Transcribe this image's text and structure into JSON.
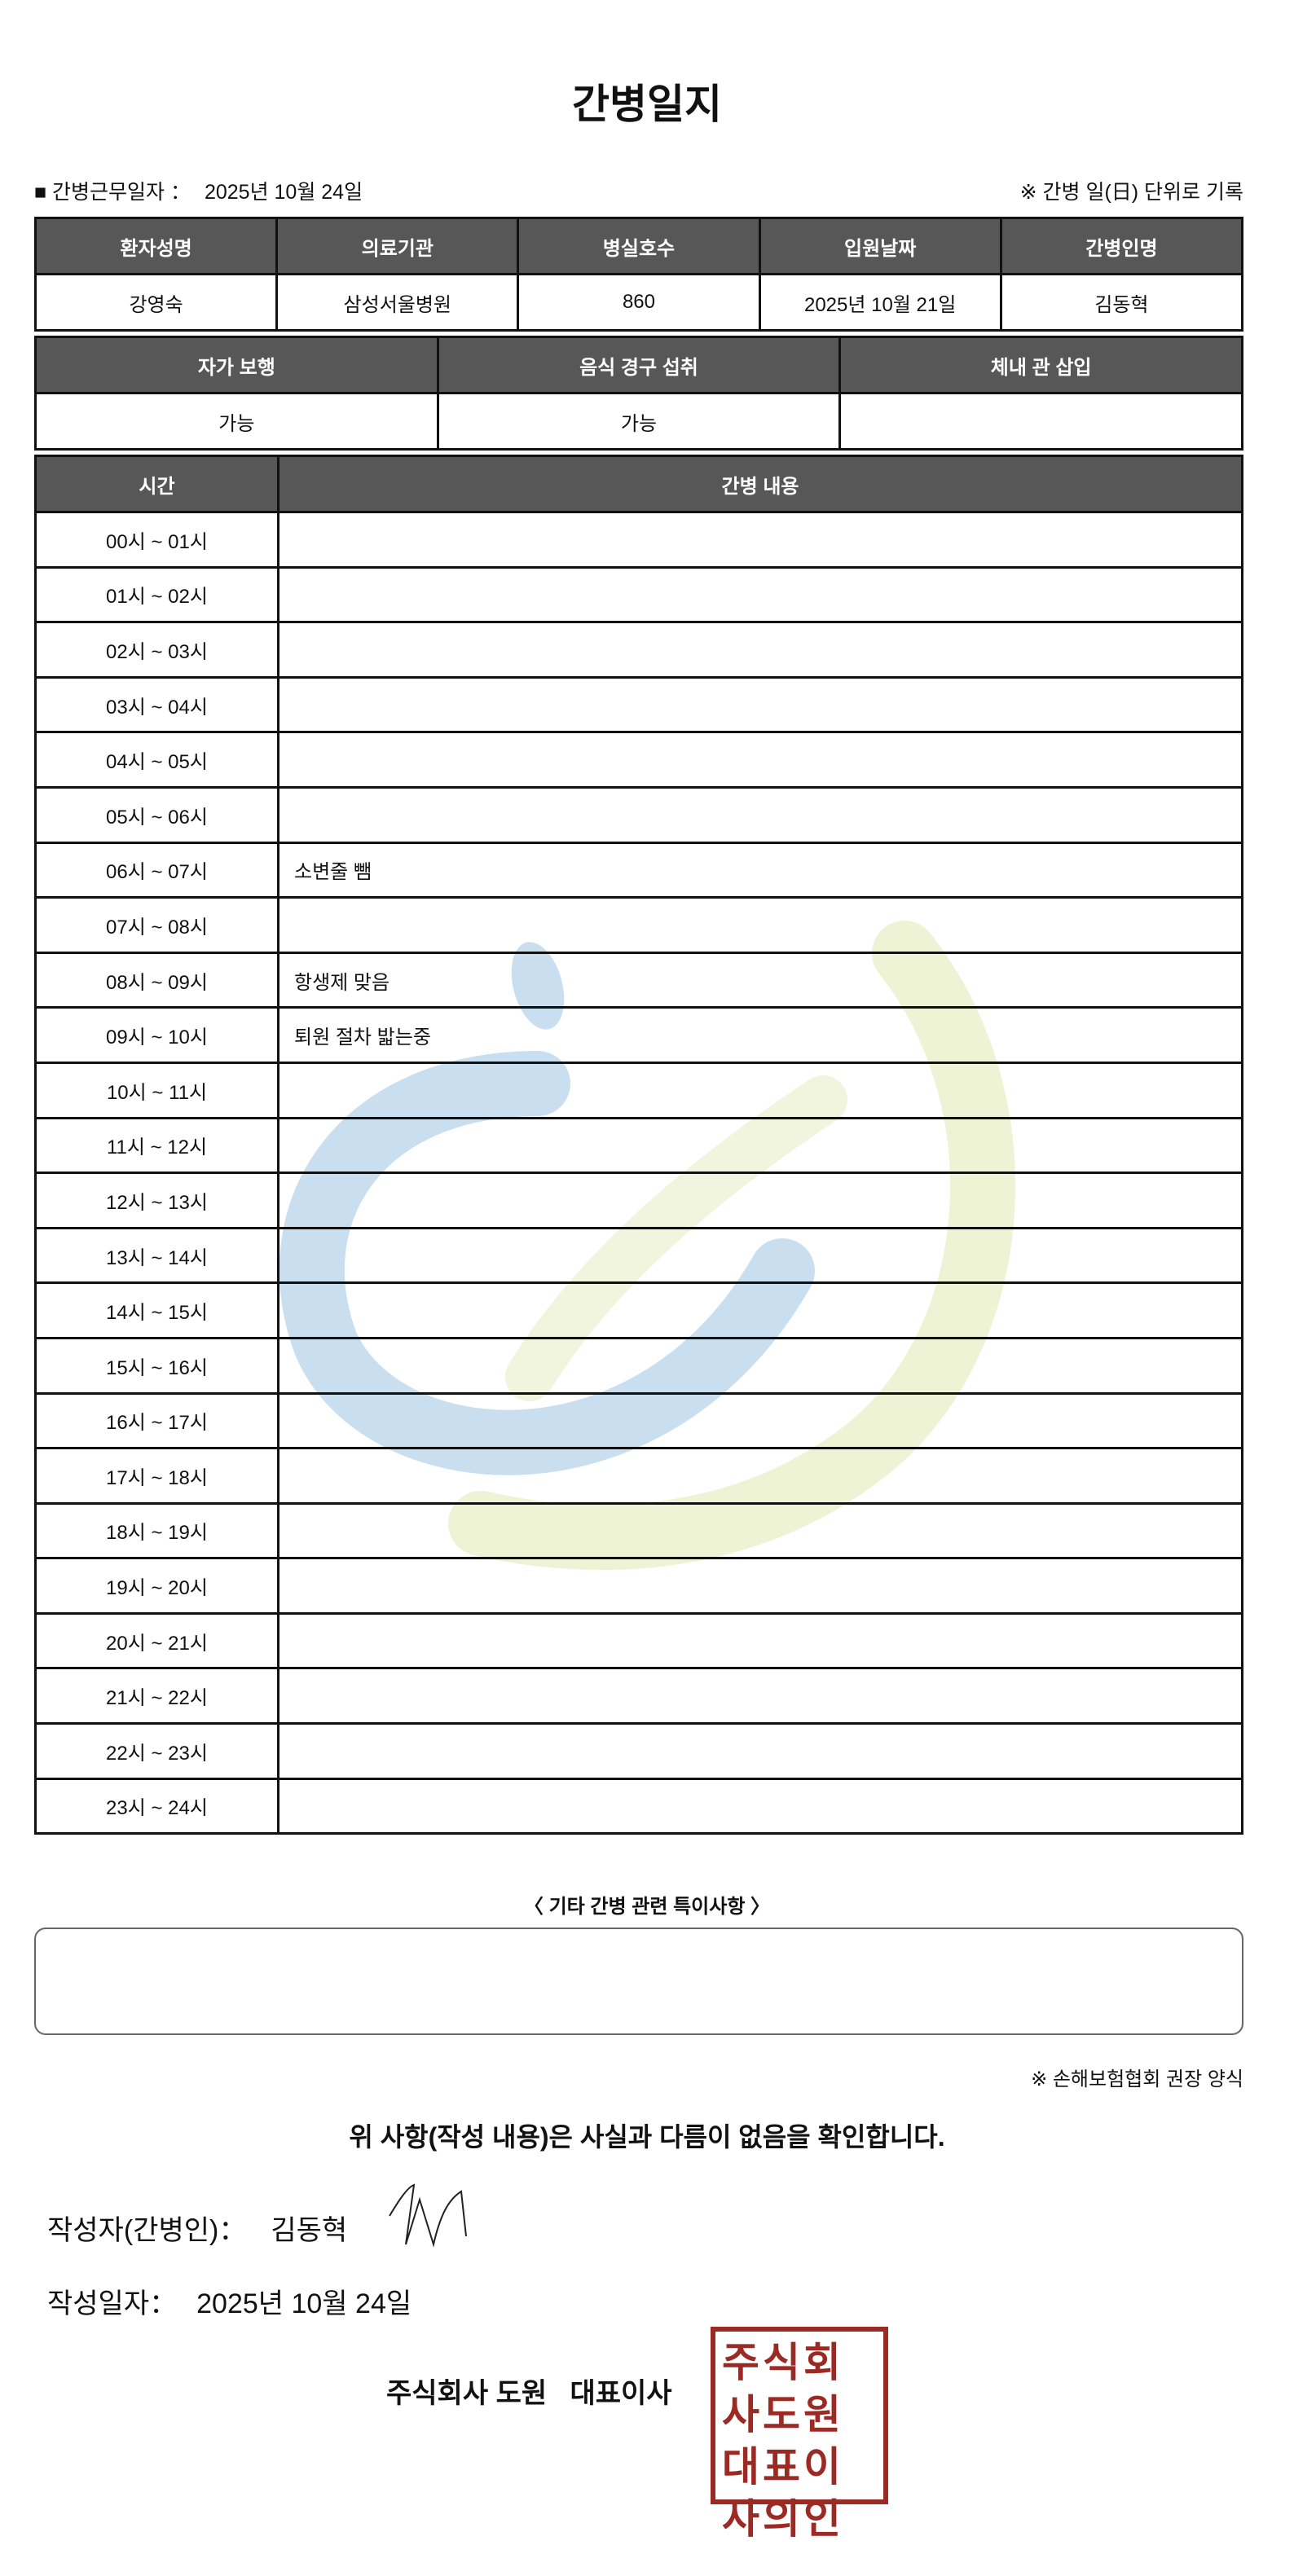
{
  "title": "간병일지",
  "work_date_label": "■ 간병근무일자 ：",
  "work_date": "2025년 10월 24일",
  "record_unit_note": "※ 간병 일(日) 단위로 기록",
  "info_table": {
    "headers": [
      "환자성명",
      "의료기관",
      "병실호수",
      "입원날짜",
      "간병인명"
    ],
    "values": [
      "강영숙",
      "삼성서울병원",
      "860",
      "2025년 10월 21일",
      "김동혁"
    ]
  },
  "status_table": {
    "headers": [
      "자가 보행",
      "음식 경구 섭취",
      "체내 관 삽입"
    ],
    "values": [
      "가능",
      "가능",
      ""
    ]
  },
  "log_table": {
    "headers": [
      "시간",
      "간병 내용"
    ],
    "rows": [
      {
        "time": "00시 ~ 01시",
        "content": ""
      },
      {
        "time": "01시 ~ 02시",
        "content": ""
      },
      {
        "time": "02시 ~ 03시",
        "content": ""
      },
      {
        "time": "03시 ~ 04시",
        "content": ""
      },
      {
        "time": "04시 ~ 05시",
        "content": ""
      },
      {
        "time": "05시 ~ 06시",
        "content": ""
      },
      {
        "time": "06시 ~ 07시",
        "content": "소변줄 뺌"
      },
      {
        "time": "07시 ~ 08시",
        "content": ""
      },
      {
        "time": "08시 ~ 09시",
        "content": "항생제 맞음"
      },
      {
        "time": "09시 ~ 10시",
        "content": "퇴원 절차 밟는중"
      },
      {
        "time": "10시 ~ 11시",
        "content": ""
      },
      {
        "time": "11시 ~ 12시",
        "content": ""
      },
      {
        "time": "12시 ~ 13시",
        "content": ""
      },
      {
        "time": "13시 ~ 14시",
        "content": ""
      },
      {
        "time": "14시 ~ 15시",
        "content": ""
      },
      {
        "time": "15시 ~ 16시",
        "content": ""
      },
      {
        "time": "16시 ~ 17시",
        "content": ""
      },
      {
        "time": "17시 ~ 18시",
        "content": ""
      },
      {
        "time": "18시 ~ 19시",
        "content": ""
      },
      {
        "time": "19시 ~ 20시",
        "content": ""
      },
      {
        "time": "20시 ~ 21시",
        "content": ""
      },
      {
        "time": "21시 ~ 22시",
        "content": ""
      },
      {
        "time": "22시 ~ 23시",
        "content": ""
      },
      {
        "time": "23시 ~ 24시",
        "content": ""
      }
    ]
  },
  "notes": {
    "label": "〈 기타 간병 관련 특이사항 〉",
    "value": ""
  },
  "form_note": "※ 손해보험협회 권장 양식",
  "confirmation": "위 사항(작성 내용)은 사실과 다름이 없음을 확인합니다.",
  "writer": {
    "label": "작성자(간병인)：",
    "value": "김동혁"
  },
  "written_date": {
    "label": "작성일자：",
    "value": "2025년 10월 24일"
  },
  "company": "주식회사 도원   대표이사",
  "stamp_text": "주식회사도원대표이사의인",
  "colors": {
    "header_bg": "#575757",
    "stamp": "#9c2a24",
    "watermark_blue": "#c9dff0",
    "watermark_green": "#eef3d6"
  }
}
